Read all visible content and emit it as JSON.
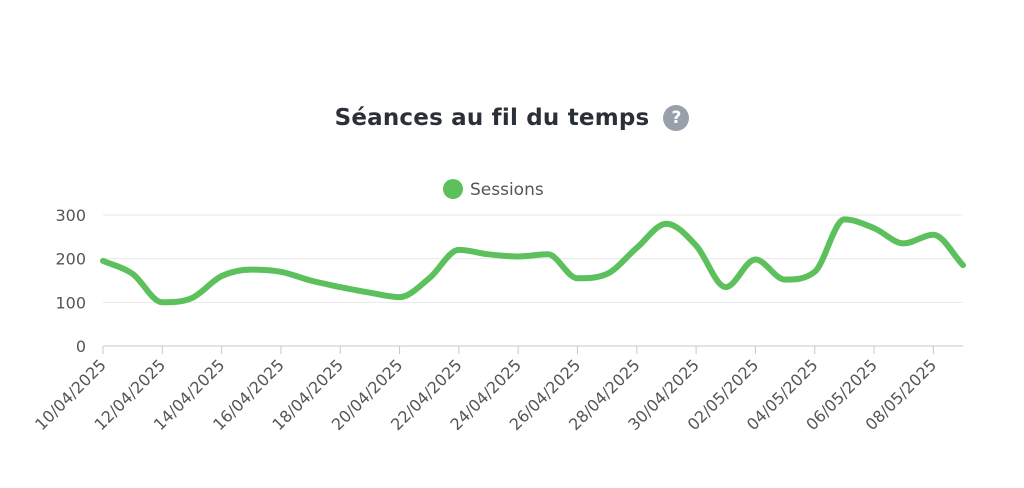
{
  "header": {
    "title": "Séances au fil du temps",
    "help_icon": "question-circle-icon",
    "help_glyph": "?"
  },
  "chart_data": {
    "type": "line",
    "title": "Séances au fil du temps",
    "legend_position": "top-center",
    "grid": true,
    "ylim": [
      0,
      300
    ],
    "yticks": [
      0,
      100,
      200,
      300
    ],
    "x": [
      "10/04/2025",
      "11/04/2025",
      "12/04/2025",
      "13/04/2025",
      "14/04/2025",
      "15/04/2025",
      "16/04/2025",
      "17/04/2025",
      "18/04/2025",
      "19/04/2025",
      "20/04/2025",
      "21/04/2025",
      "22/04/2025",
      "23/04/2025",
      "24/04/2025",
      "25/04/2025",
      "26/04/2025",
      "27/04/2025",
      "28/04/2025",
      "29/04/2025",
      "30/04/2025",
      "01/05/2025",
      "02/05/2025",
      "03/05/2025",
      "04/05/2025",
      "05/05/2025",
      "06/05/2025",
      "07/05/2025",
      "08/05/2025",
      "09/05/2025"
    ],
    "xtick_labels": [
      "10/04/2025",
      "12/04/2025",
      "14/04/2025",
      "16/04/2025",
      "18/04/2025",
      "20/04/2025",
      "22/04/2025",
      "24/04/2025",
      "26/04/2025",
      "28/04/2025",
      "30/04/2025",
      "02/05/2025",
      "04/05/2025",
      "06/05/2025",
      "08/05/2025"
    ],
    "series": [
      {
        "name": "Sessions",
        "color": "#5cc05c",
        "values": [
          195,
          165,
          100,
          110,
          160,
          175,
          170,
          150,
          135,
          122,
          112,
          155,
          220,
          210,
          205,
          210,
          155,
          165,
          225,
          280,
          230,
          135,
          198,
          152,
          170,
          290,
          270,
          235,
          255,
          185
        ]
      }
    ]
  }
}
